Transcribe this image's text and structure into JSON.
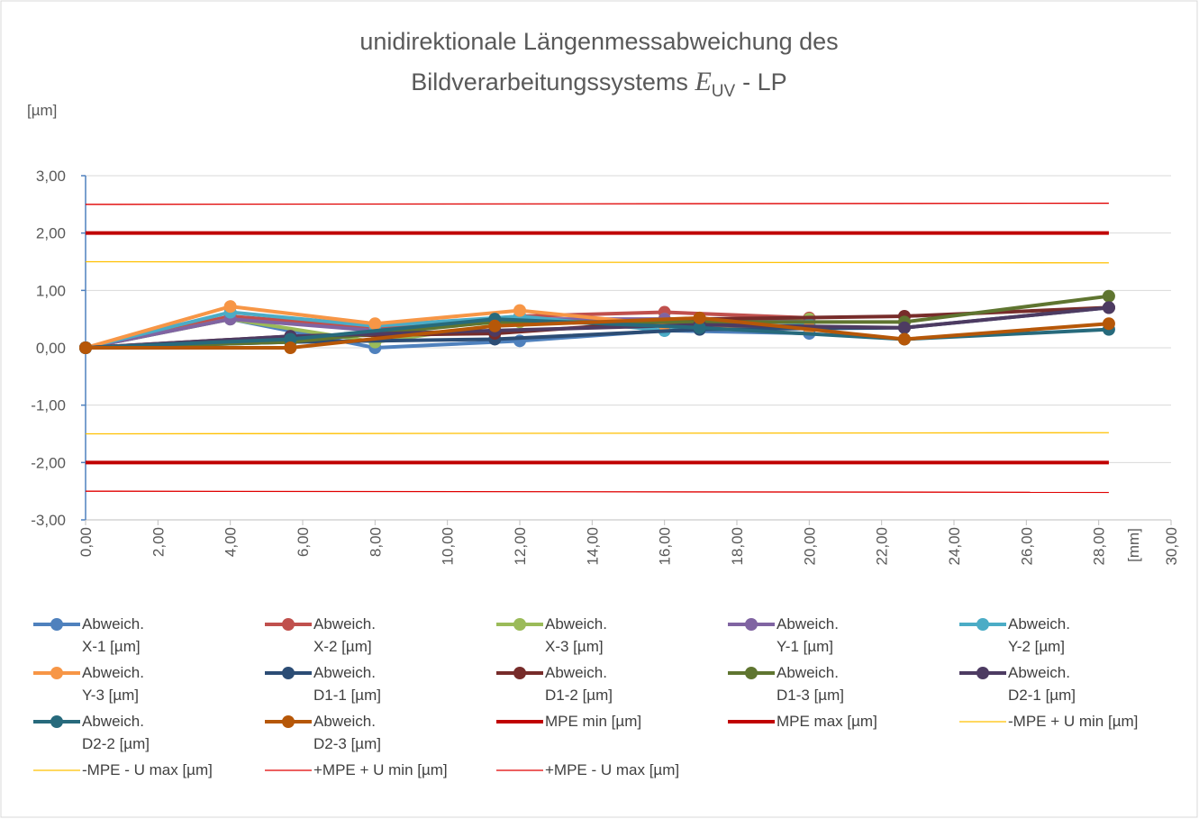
{
  "chart_data": {
    "type": "line",
    "title_line1": "unidirektionale Längenmessabweichung des",
    "title_line2": "Bildverarbeitungssystems",
    "title_symbol": "E",
    "title_subscript": "UV",
    "title_suffix": "- LP",
    "y_label": "[µm]",
    "x_label": "[mm]",
    "xlim": [
      0,
      30
    ],
    "ylim": [
      -3,
      3
    ],
    "xticks": [
      {
        "value": 0,
        "label": "0,00"
      },
      {
        "value": 2,
        "label": "2,00"
      },
      {
        "value": 4,
        "label": "4,00"
      },
      {
        "value": 6,
        "label": "6,00"
      },
      {
        "value": 8,
        "label": "8,00"
      },
      {
        "value": 10,
        "label": "10,00"
      },
      {
        "value": 12,
        "label": "12,00"
      },
      {
        "value": 14,
        "label": "14,00"
      },
      {
        "value": 16,
        "label": "16,00"
      },
      {
        "value": 18,
        "label": "18,00"
      },
      {
        "value": 20,
        "label": "20,00"
      },
      {
        "value": 22,
        "label": "22,00"
      },
      {
        "value": 24,
        "label": "24,00"
      },
      {
        "value": 26,
        "label": "26,00"
      },
      {
        "value": 28,
        "label": "28,00"
      },
      {
        "value": 30,
        "label": "30,00"
      }
    ],
    "yticks": [
      {
        "value": -3,
        "label": "-3,00"
      },
      {
        "value": -2,
        "label": "-2,00"
      },
      {
        "value": -1,
        "label": "-1,00"
      },
      {
        "value": 0,
        "label": "0,00"
      },
      {
        "value": 1,
        "label": "1,00"
      },
      {
        "value": 2,
        "label": "2,00"
      },
      {
        "value": 3,
        "label": "3,00"
      }
    ],
    "grid": true,
    "legend": "bottom",
    "series": [
      {
        "name": "Abweich.\nX-1 [µm]",
        "color": "#4f81bd",
        "marker": true,
        "width": 4,
        "x": [
          0,
          4,
          8,
          12,
          16,
          20
        ],
        "values": [
          0,
          0.5,
          0.0,
          0.12,
          0.3,
          0.25
        ]
      },
      {
        "name": "Abweich.\nX-2 [µm]",
        "color": "#c0504d",
        "marker": true,
        "width": 4,
        "x": [
          0,
          4,
          8,
          12,
          16,
          20
        ],
        "values": [
          0,
          0.55,
          0.35,
          0.55,
          0.62,
          0.52
        ]
      },
      {
        "name": "Abweich.\nX-3 [µm]",
        "color": "#9bbb59",
        "marker": true,
        "width": 4,
        "x": [
          0,
          4,
          8,
          12,
          16,
          20
        ],
        "values": [
          0,
          0.5,
          0.1,
          0.45,
          0.5,
          0.5
        ]
      },
      {
        "name": "Abweich.\nY-1 [µm]",
        "color": "#8064a2",
        "marker": true,
        "width": 4,
        "x": [
          0,
          4,
          8,
          12,
          16,
          20
        ],
        "values": [
          0,
          0.5,
          0.3,
          0.5,
          0.5,
          0.45
        ]
      },
      {
        "name": "Abweich.\nY-2 [µm]",
        "color": "#4bacc6",
        "marker": true,
        "width": 4,
        "x": [
          0,
          4,
          8,
          12,
          16,
          20
        ],
        "values": [
          0,
          0.62,
          0.38,
          0.55,
          0.3,
          0.4
        ]
      },
      {
        "name": "Abweich.\nY-3 [µm]",
        "color": "#f79646",
        "marker": true,
        "width": 4,
        "x": [
          0,
          4,
          8,
          12,
          16,
          20
        ],
        "values": [
          0,
          0.72,
          0.42,
          0.65,
          0.4,
          0.35
        ]
      },
      {
        "name": "Abweich.\nD1-1 [µm]",
        "color": "#2c4d75",
        "marker": true,
        "width": 4,
        "x": [
          0,
          5.66,
          11.31,
          16.97,
          22.63,
          28.28
        ],
        "values": [
          0,
          0.1,
          0.15,
          0.32,
          0.35,
          0.7
        ]
      },
      {
        "name": "Abweich.\nD1-2 [µm]",
        "color": "#772c2a",
        "marker": true,
        "width": 4,
        "x": [
          0,
          5.66,
          11.31,
          16.97,
          22.63,
          28.28
        ],
        "values": [
          0,
          0.2,
          0.25,
          0.5,
          0.55,
          0.7
        ]
      },
      {
        "name": "Abweich.\nD1-3 [µm]",
        "color": "#5f7530",
        "marker": true,
        "width": 4,
        "x": [
          0,
          5.66,
          11.31,
          16.97,
          22.63,
          28.28
        ],
        "values": [
          0,
          0.1,
          0.45,
          0.45,
          0.45,
          0.9
        ]
      },
      {
        "name": "Abweich.\nD2-1 [µm]",
        "color": "#4d3b62",
        "marker": true,
        "width": 4,
        "x": [
          0,
          5.66,
          11.31,
          16.97,
          22.63,
          28.28
        ],
        "values": [
          0,
          0.2,
          0.3,
          0.4,
          0.35,
          0.7
        ]
      },
      {
        "name": "Abweich.\nD2-2 [µm]",
        "color": "#276a7c",
        "marker": true,
        "width": 4,
        "x": [
          0,
          5.66,
          11.31,
          16.97,
          22.63,
          28.28
        ],
        "values": [
          0,
          0.15,
          0.5,
          0.35,
          0.15,
          0.32
        ]
      },
      {
        "name": "Abweich.\nD2-3 [µm]",
        "color": "#b65708",
        "marker": true,
        "width": 4,
        "x": [
          0,
          5.66,
          11.31,
          16.97,
          22.63,
          28.28
        ],
        "values": [
          0,
          0.0,
          0.38,
          0.52,
          0.15,
          0.42
        ]
      },
      {
        "name": "MPE min [µm]",
        "color": "#c00000",
        "marker": false,
        "width": 4,
        "x": [
          0,
          28.28
        ],
        "values": [
          -2,
          -2
        ]
      },
      {
        "name": "MPE max [µm]",
        "color": "#c00000",
        "marker": false,
        "width": 4,
        "x": [
          0,
          28.28
        ],
        "values": [
          2,
          2
        ]
      },
      {
        "name": "-MPE + U min [µm]",
        "color": "#ffc000",
        "marker": false,
        "width": 1.3,
        "x": [
          0,
          28.28
        ],
        "values": [
          -1.5,
          -1.48
        ]
      },
      {
        "name": "-MPE - U max [µm]",
        "color": "#ffc000",
        "marker": false,
        "width": 1.3,
        "x": [
          0,
          28.28
        ],
        "values": [
          1.5,
          1.48
        ]
      },
      {
        "name": "+MPE + U min [µm]",
        "color": "#e00000",
        "marker": false,
        "width": 1.3,
        "x": [
          0,
          28.28
        ],
        "values": [
          2.5,
          2.52
        ]
      },
      {
        "name": "+MPE - U max [µm]",
        "color": "#e00000",
        "marker": false,
        "width": 1.3,
        "x": [
          0,
          28.28
        ],
        "values": [
          -2.5,
          -2.52
        ]
      }
    ]
  }
}
